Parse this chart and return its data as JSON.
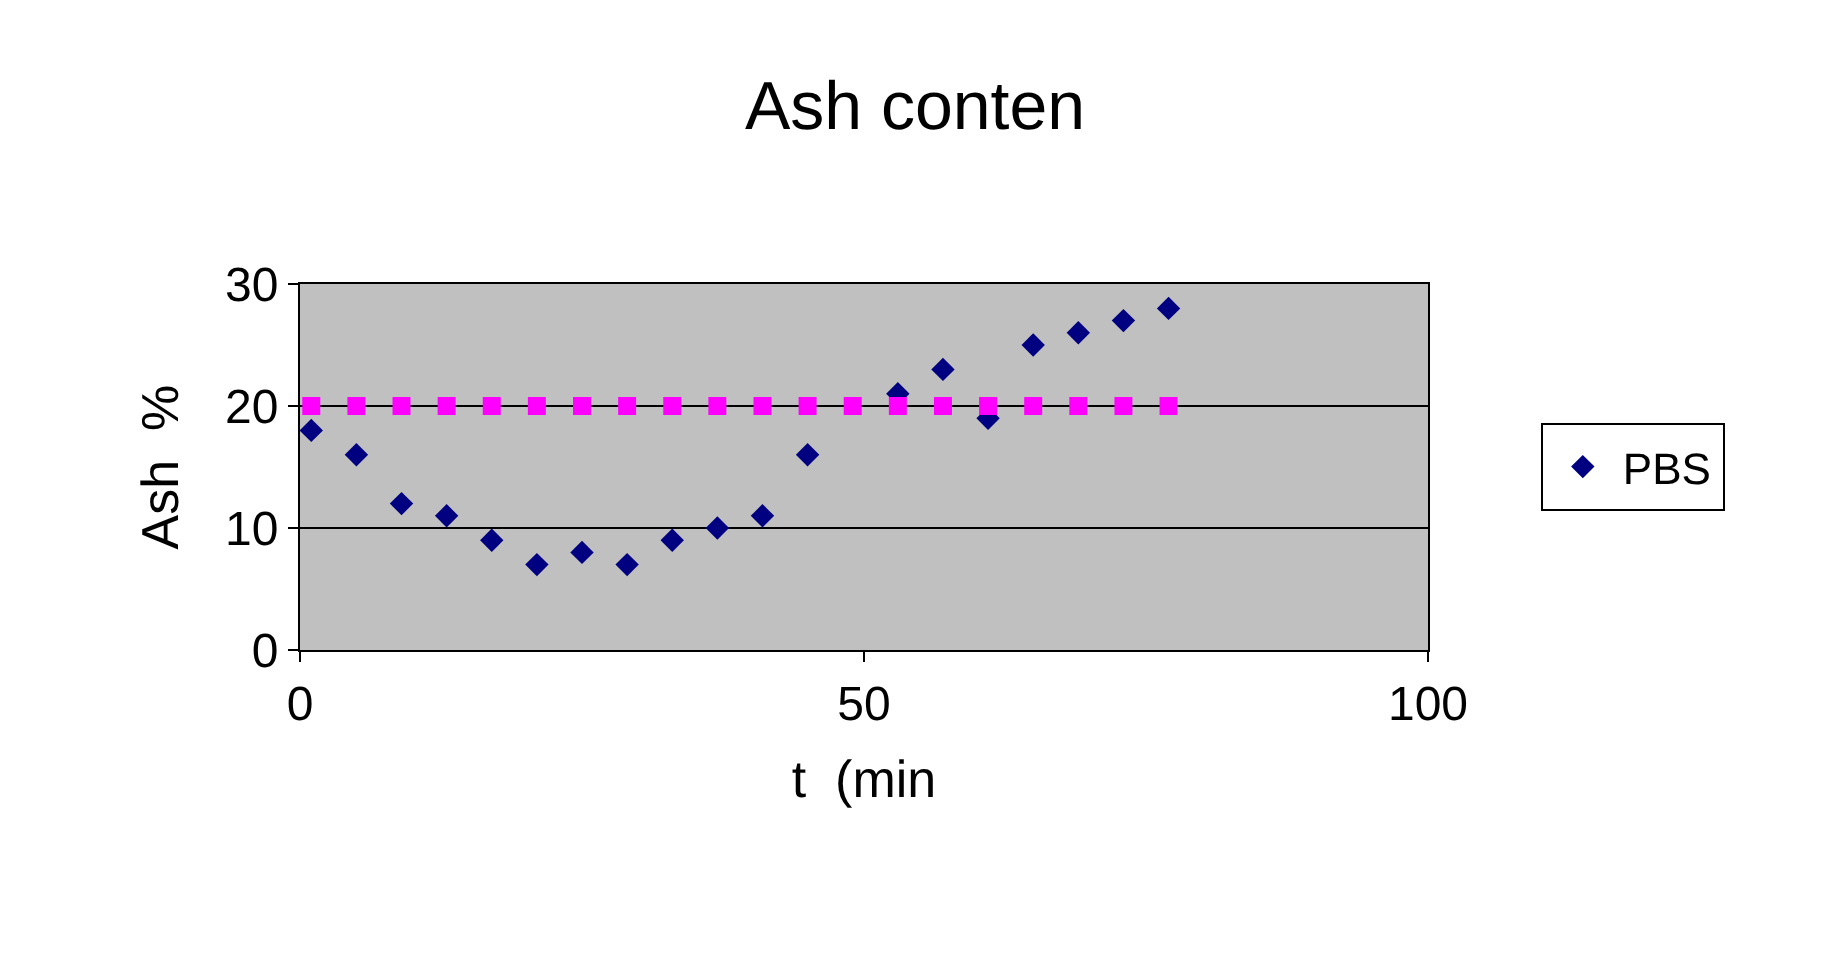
{
  "chart_data": {
    "type": "scatter",
    "title": "Ash conten",
    "xlabel": "t  (min",
    "ylabel": "Ash  %",
    "x": [
      1,
      5,
      9,
      13,
      17,
      21,
      25,
      29,
      33,
      37,
      41,
      45,
      49,
      53,
      57,
      61,
      65,
      69,
      73,
      77
    ],
    "series": [
      {
        "name": "PBS",
        "color": "#000080",
        "marker": "diamond",
        "values": [
          18,
          16,
          12,
          11,
          9,
          7,
          8,
          7,
          9,
          10,
          11,
          16,
          null,
          21,
          23,
          19,
          25,
          26,
          27,
          28
        ]
      },
      {
        "color": "#ff00ff",
        "marker": "square",
        "values": [
          20,
          20,
          20,
          20,
          20,
          20,
          20,
          20,
          20,
          20,
          20,
          20,
          20,
          20,
          20,
          20,
          20,
          20,
          20,
          20
        ]
      }
    ],
    "xlim": [
      0,
      100
    ],
    "xticks": [
      0,
      50,
      100
    ],
    "ylim": [
      0,
      30
    ],
    "yticks": [
      0,
      10,
      20,
      30
    ],
    "grid": "y",
    "legend": "right"
  }
}
